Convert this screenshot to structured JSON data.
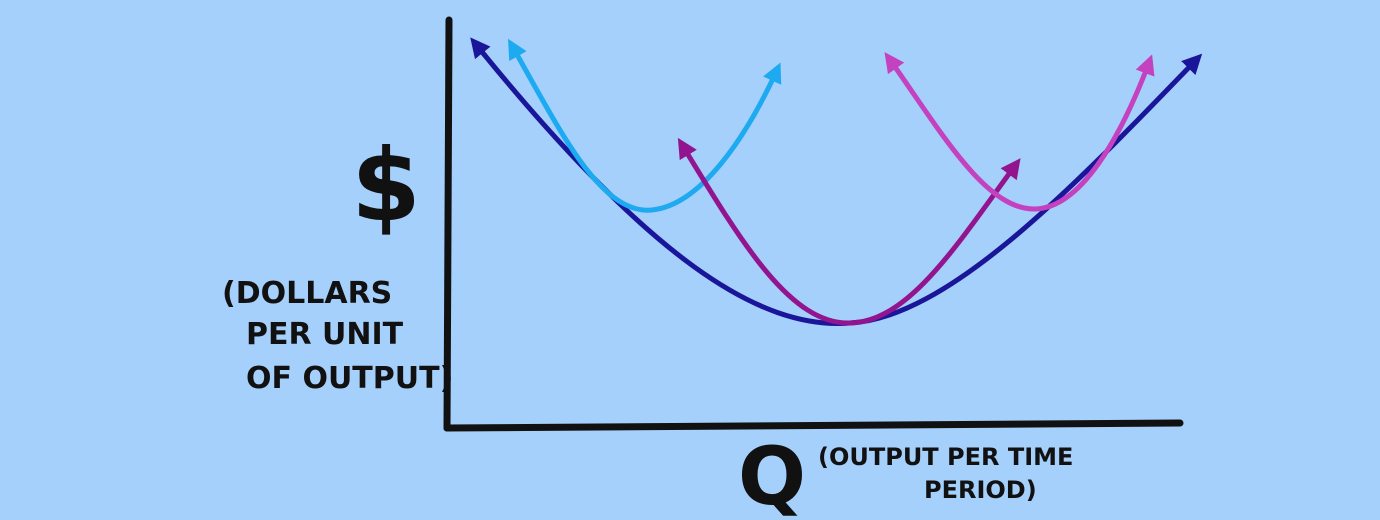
{
  "y_axis": {
    "symbol": "$",
    "label_lines": [
      "(DOLLARS",
      "PER UNIT",
      "OF OUTPUT)"
    ]
  },
  "x_axis": {
    "symbol": "Q",
    "label_lines": [
      "(OUTPUT PER TIME",
      "PERIOD)"
    ]
  },
  "colors": {
    "background": "#a5d0fb",
    "axis": "#111111",
    "long_run_curve": "#1a169a",
    "short_run_curve_left": "#1eaaf0",
    "short_run_curve_middle": "#92158f",
    "short_run_curve_right": "#c441c0"
  }
}
